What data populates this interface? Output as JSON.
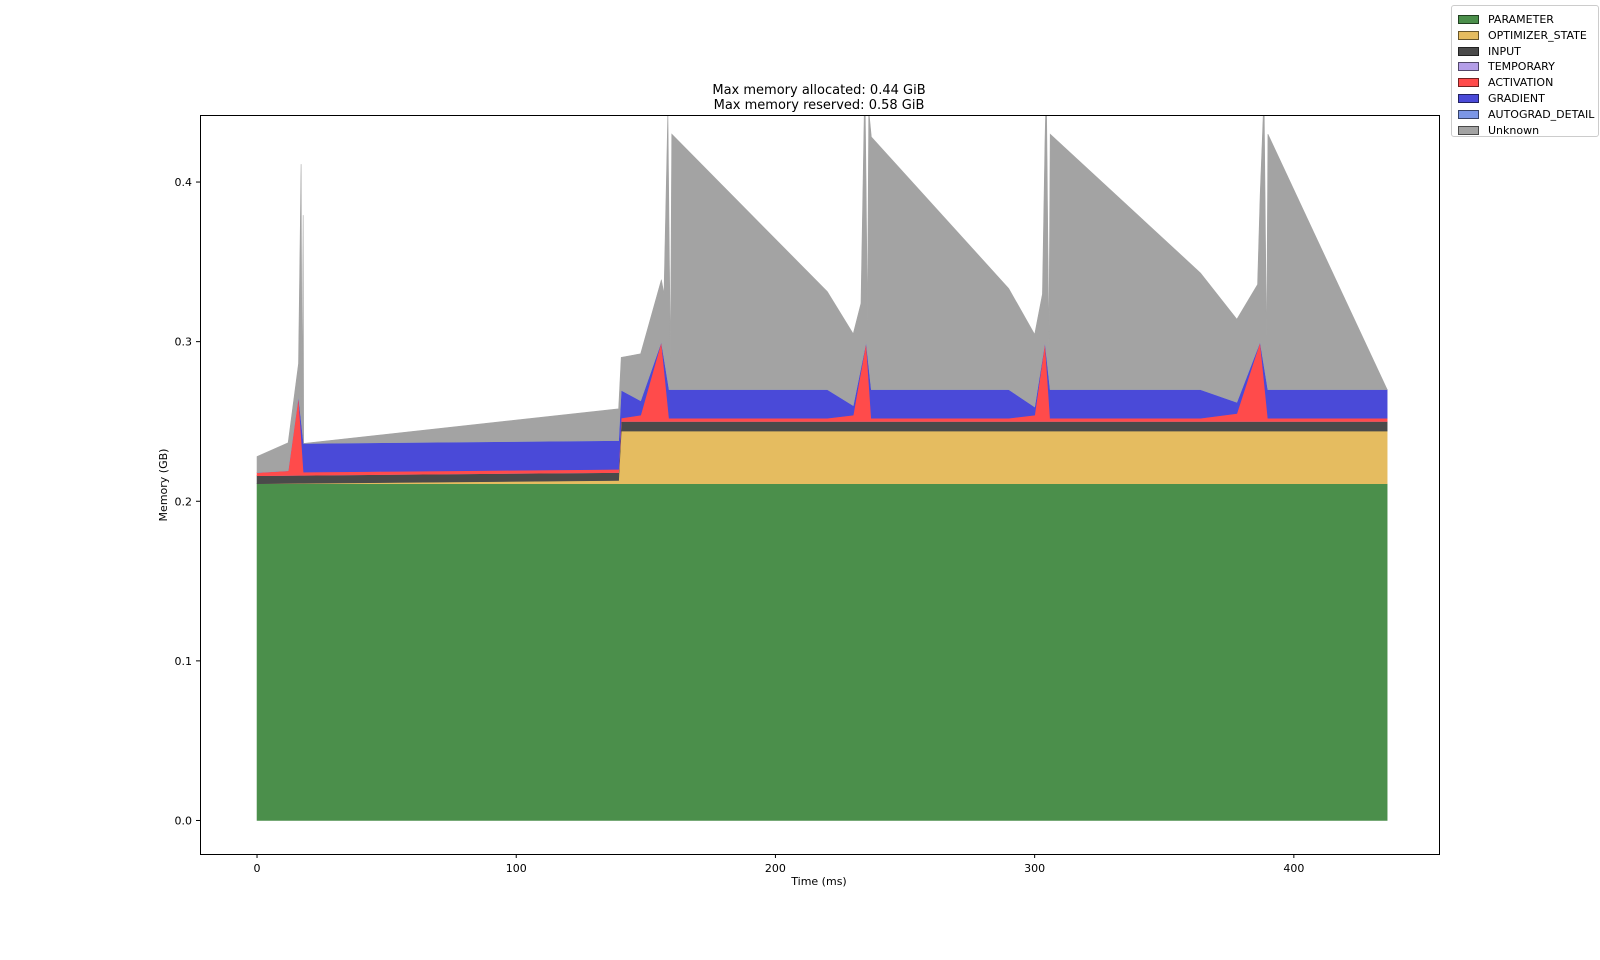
{
  "chart_data": {
    "type": "area",
    "title": "Max memory allocated: 0.44 GiB",
    "subtitle": "Max memory reserved: 0.58 GiB",
    "xlabel": "Time (ms)",
    "ylabel": "Memory (GB)",
    "xlim": [
      -22,
      456
    ],
    "ylim": [
      -0.021,
      0.442
    ],
    "x_ticks": [
      0,
      100,
      200,
      300,
      400
    ],
    "x_tick_labels": [
      "0",
      "100",
      "200",
      "300",
      "400"
    ],
    "y_ticks": [
      0.0,
      0.1,
      0.2,
      0.3,
      0.4
    ],
    "y_tick_labels": [
      "0.0",
      "0.1",
      "0.2",
      "0.3",
      "0.4"
    ],
    "grid": false,
    "legend_position": "top-right, outside axes",
    "stacked": true,
    "series": [
      {
        "name": "PARAMETER",
        "color": "#4b8f4b",
        "x": [
          0,
          140,
          140.5,
          436
        ],
        "values": [
          0.211,
          0.211,
          0.211,
          0.211
        ]
      },
      {
        "name": "OPTIMIZER_STATE",
        "color": "#e5bc60",
        "x": [
          0,
          139.5,
          140.5,
          436
        ],
        "values": [
          0.0,
          0.002,
          0.033,
          0.033
        ]
      },
      {
        "name": "INPUT",
        "color": "#4a4a4a",
        "x": [
          0,
          139.5,
          140.5,
          436
        ],
        "values": [
          0.005,
          0.005,
          0.006,
          0.006
        ]
      },
      {
        "name": "TEMPORARY",
        "color": "#b49ee8",
        "x": [
          0,
          436
        ],
        "values": [
          0.0,
          0.0
        ]
      },
      {
        "name": "ACTIVATION",
        "color": "#ff4b4b",
        "x": [
          0,
          12,
          16,
          18,
          140,
          148,
          156,
          159,
          220,
          230,
          235,
          237,
          290,
          300,
          304,
          306,
          364,
          378,
          387,
          390,
          436
        ],
        "values": [
          0.002,
          0.003,
          0.05,
          0.002,
          0.002,
          0.004,
          0.05,
          0.002,
          0.002,
          0.004,
          0.05,
          0.002,
          0.002,
          0.004,
          0.05,
          0.002,
          0.002,
          0.005,
          0.05,
          0.002,
          0.002
        ]
      },
      {
        "name": "GRADIENT",
        "color": "#4a4ad8",
        "x": [
          0,
          16,
          18,
          140,
          156,
          159,
          220,
          235,
          237,
          290,
          304,
          306,
          364,
          387,
          390,
          436
        ],
        "values": [
          0.0,
          0.0,
          0.018,
          0.018,
          0.0,
          0.018,
          0.018,
          0.0,
          0.018,
          0.018,
          0.0,
          0.018,
          0.018,
          0.0,
          0.018,
          0.018
        ]
      },
      {
        "name": "AUTOGRAD_DETAIL",
        "color": "#7b96e6",
        "x": [
          0,
          436
        ],
        "values": [
          0.0,
          0.0
        ]
      },
      {
        "name": "Unknown",
        "color": "#a3a3a3",
        "x": [
          0,
          16,
          17,
          17.4,
          17.8,
          18,
          140,
          157,
          158.5,
          159.5,
          160,
          233,
          234.5,
          235.5,
          236,
          303,
          304.5,
          305.5,
          306,
          386,
          388.5,
          389.5,
          390,
          436
        ],
        "values": [
          0.01,
          0.02,
          0.16,
          0.02,
          0.14,
          0.0,
          0.02,
          0.04,
          0.17,
          0.02,
          0.16,
          0.04,
          0.17,
          0.02,
          0.16,
          0.04,
          0.17,
          0.02,
          0.16,
          0.04,
          0.17,
          0.02,
          0.16,
          0.0
        ]
      }
    ]
  }
}
